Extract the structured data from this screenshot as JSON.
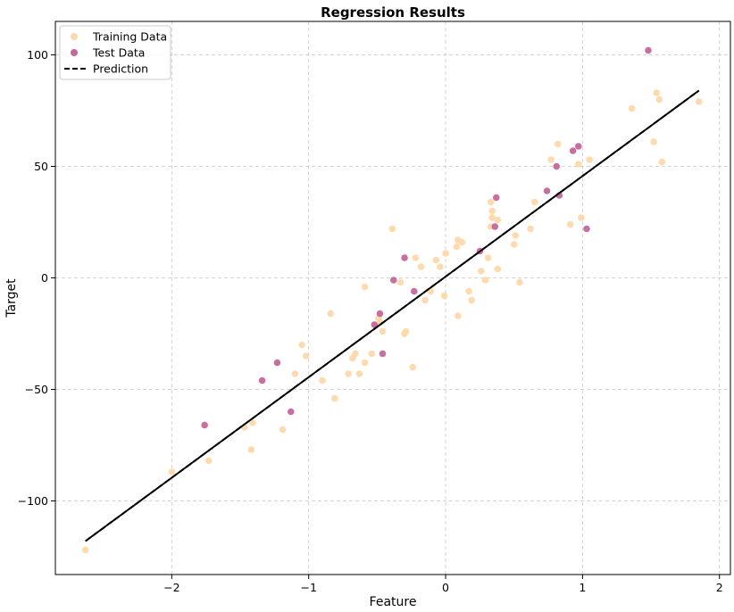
{
  "chart_data": {
    "type": "scatter",
    "title": "Regression Results",
    "xlabel": "Feature",
    "ylabel": "Target",
    "xlim": [
      -2.85,
      2.08
    ],
    "ylim": [
      -133,
      115
    ],
    "xticks": [
      -2,
      -1,
      0,
      1,
      2
    ],
    "yticks": [
      -100,
      -50,
      0,
      50,
      100
    ],
    "xtick_labels": [
      "−2",
      "−1",
      "0",
      "1",
      "2"
    ],
    "ytick_labels": [
      "−100",
      "−50",
      "0",
      "50",
      "100"
    ],
    "grid": true,
    "legend_position": "top-left",
    "series": [
      {
        "name": "Training Data",
        "kind": "scatter",
        "color": "#fdd8a8",
        "points": [
          [
            -2.63,
            -122
          ],
          [
            -2.0,
            -87
          ],
          [
            -1.73,
            -82
          ],
          [
            -1.47,
            -67
          ],
          [
            -1.42,
            -77
          ],
          [
            -1.41,
            -65
          ],
          [
            -1.19,
            -68
          ],
          [
            -1.1,
            -43
          ],
          [
            -1.05,
            -30
          ],
          [
            -1.02,
            -35
          ],
          [
            -0.9,
            -46
          ],
          [
            -0.84,
            -16
          ],
          [
            -0.81,
            -54
          ],
          [
            -0.71,
            -43
          ],
          [
            -0.68,
            -36
          ],
          [
            -0.66,
            -34
          ],
          [
            -0.63,
            -43
          ],
          [
            -0.59,
            -38
          ],
          [
            -0.59,
            -4
          ],
          [
            -0.54,
            -34
          ],
          [
            -0.49,
            -18
          ],
          [
            -0.48,
            -20
          ],
          [
            -0.46,
            -24
          ],
          [
            -0.39,
            22
          ],
          [
            -0.33,
            -2
          ],
          [
            -0.3,
            -25
          ],
          [
            -0.29,
            -24
          ],
          [
            -0.24,
            -40
          ],
          [
            -0.22,
            9
          ],
          [
            -0.18,
            5
          ],
          [
            -0.15,
            -10
          ],
          [
            -0.11,
            -6
          ],
          [
            -0.07,
            8
          ],
          [
            -0.04,
            5
          ],
          [
            -0.01,
            -8
          ],
          [
            0.0,
            11
          ],
          [
            0.08,
            14
          ],
          [
            0.09,
            -17
          ],
          [
            0.09,
            17
          ],
          [
            0.12,
            16
          ],
          [
            0.17,
            -6
          ],
          [
            0.19,
            -10
          ],
          [
            0.26,
            3
          ],
          [
            0.29,
            -1
          ],
          [
            0.31,
            9
          ],
          [
            0.33,
            23
          ],
          [
            0.34,
            30
          ],
          [
            0.34,
            27
          ],
          [
            0.33,
            34
          ],
          [
            0.38,
            26
          ],
          [
            0.38,
            4
          ],
          [
            0.5,
            15
          ],
          [
            0.51,
            19
          ],
          [
            0.54,
            -2
          ],
          [
            0.62,
            22
          ],
          [
            0.65,
            34
          ],
          [
            0.77,
            53
          ],
          [
            0.82,
            60
          ],
          [
            0.91,
            24
          ],
          [
            0.97,
            51
          ],
          [
            0.99,
            27
          ],
          [
            1.05,
            53
          ],
          [
            1.36,
            76
          ],
          [
            1.52,
            61
          ],
          [
            1.54,
            83
          ],
          [
            1.56,
            80
          ],
          [
            1.58,
            52
          ],
          [
            1.85,
            79
          ]
        ]
      },
      {
        "name": "Test Data",
        "kind": "scatter",
        "color": "#c4689b",
        "points": [
          [
            -1.76,
            -66
          ],
          [
            -1.34,
            -46
          ],
          [
            -1.23,
            -38
          ],
          [
            -1.13,
            -60
          ],
          [
            -0.52,
            -21
          ],
          [
            -0.48,
            -16
          ],
          [
            -0.46,
            -34
          ],
          [
            -0.38,
            -1
          ],
          [
            -0.3,
            9
          ],
          [
            -0.23,
            -6
          ],
          [
            0.25,
            12
          ],
          [
            0.36,
            23
          ],
          [
            0.37,
            36
          ],
          [
            0.74,
            39
          ],
          [
            0.81,
            50
          ],
          [
            0.83,
            37
          ],
          [
            0.93,
            57
          ],
          [
            0.97,
            59
          ],
          [
            1.03,
            22
          ],
          [
            1.48,
            102
          ]
        ]
      },
      {
        "name": "Prediction",
        "kind": "line",
        "color": "#000000",
        "dash": "dashed",
        "x": [
          -2.63,
          1.85
        ],
        "y": [
          -118,
          84
        ]
      }
    ]
  }
}
